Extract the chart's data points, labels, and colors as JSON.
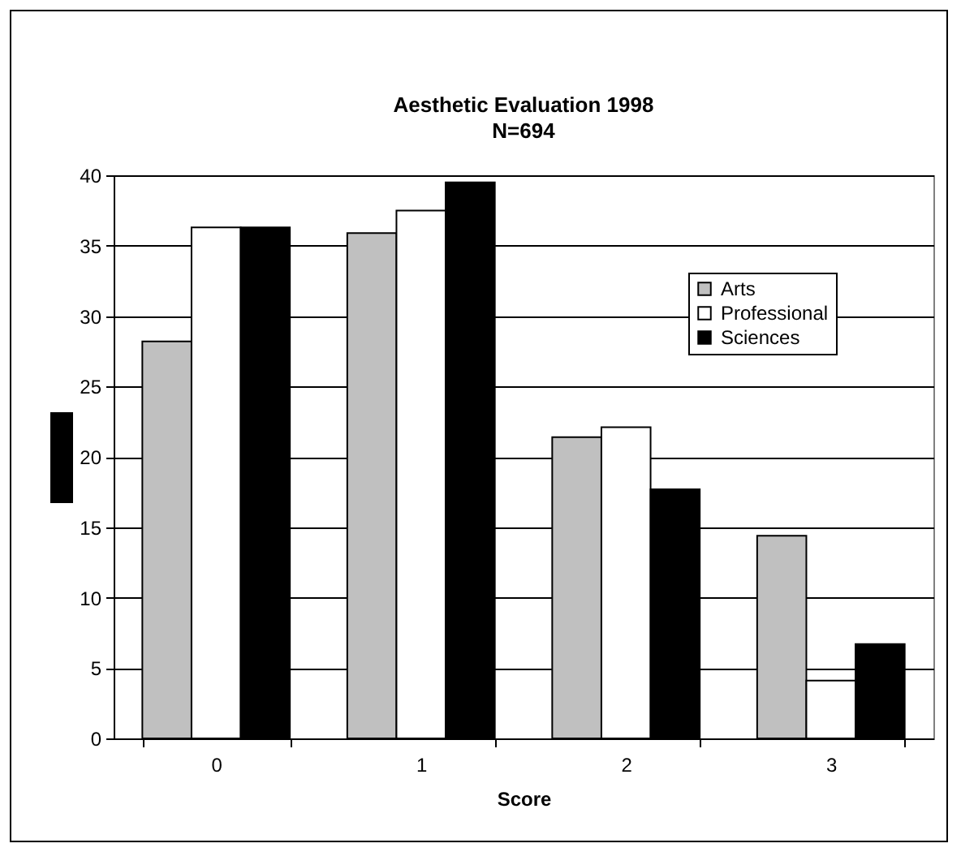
{
  "chart_data": {
    "type": "bar",
    "title": "Aesthetic Evaluation 1998",
    "subtitle": "N=694",
    "xlabel": "Score",
    "categories": [
      "0",
      "1",
      "2",
      "3"
    ],
    "series": [
      {
        "name": "Arts",
        "color": "#c0c0c0",
        "values": [
          28.2,
          35.9,
          21.4,
          14.4
        ]
      },
      {
        "name": "Professional",
        "color": "#ffffff",
        "values": [
          36.3,
          37.5,
          22.1,
          4.1
        ]
      },
      {
        "name": "Sciences",
        "color": "#000000",
        "values": [
          36.3,
          39.5,
          17.7,
          6.7
        ]
      }
    ],
    "ylim": [
      0,
      40
    ],
    "yticks": [
      0,
      5,
      10,
      15,
      20,
      25,
      30,
      35,
      40
    ],
    "grid": "y",
    "legend": "right"
  }
}
